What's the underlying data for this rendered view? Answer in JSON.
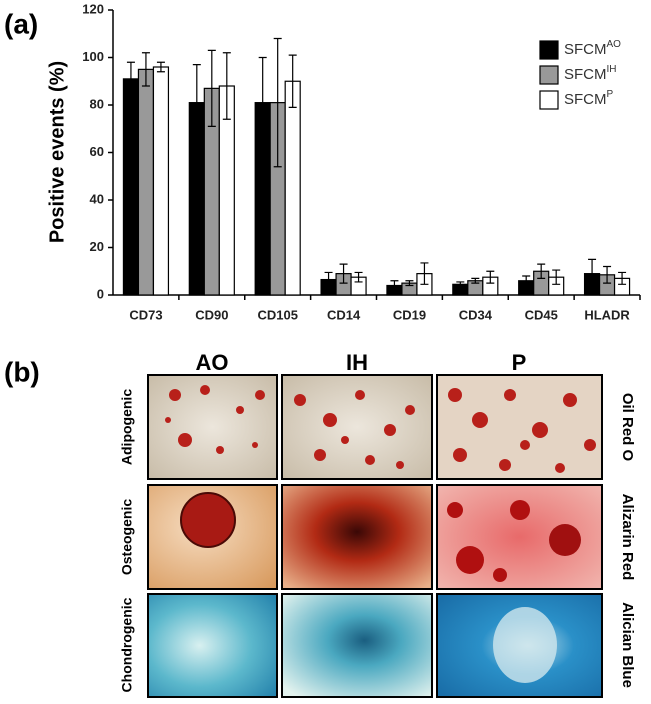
{
  "figure": {
    "panel_a_label": "(a)",
    "panel_b_label": "(b)"
  },
  "chart_data": {
    "type": "bar",
    "ylabel": "Positive events (%)",
    "categories": [
      "CD73",
      "CD90",
      "CD105",
      "CD14",
      "CD19",
      "CD34",
      "CD45",
      "HLADR"
    ],
    "series": [
      {
        "name": "SFCM",
        "superscript": "AO",
        "color": "#000000",
        "values": [
          91,
          81,
          81,
          6.5,
          4,
          4.5,
          6,
          9
        ],
        "errors": [
          7,
          16,
          19,
          3,
          2,
          1,
          2,
          6
        ]
      },
      {
        "name": "SFCM",
        "superscript": "IH",
        "color": "#999999",
        "values": [
          95,
          87,
          81,
          9,
          5,
          6,
          10,
          8.5
        ],
        "errors": [
          7,
          16,
          27,
          4,
          1,
          1,
          3,
          3.5
        ]
      },
      {
        "name": "SFCM",
        "superscript": "P",
        "color": "#ffffff",
        "values": [
          96,
          88,
          90,
          7.5,
          9,
          7.5,
          7.5,
          7
        ],
        "errors": [
          2,
          14,
          11,
          2,
          4.5,
          2.5,
          3,
          2.5
        ]
      }
    ],
    "ylim": [
      0,
      120
    ],
    "yticks": [
      0,
      20,
      40,
      60,
      80,
      100,
      120
    ],
    "grid": false,
    "legend_position": "upper right"
  },
  "panel_b": {
    "columns": [
      "AO",
      "IH",
      "P"
    ],
    "rows": [
      {
        "label": "Adipogenic",
        "stain": "Oil Red O"
      },
      {
        "label": "Osteogenic",
        "stain": "Alizarin Red"
      },
      {
        "label": "Chondrogenic",
        "stain": "Alician Blue"
      }
    ]
  }
}
